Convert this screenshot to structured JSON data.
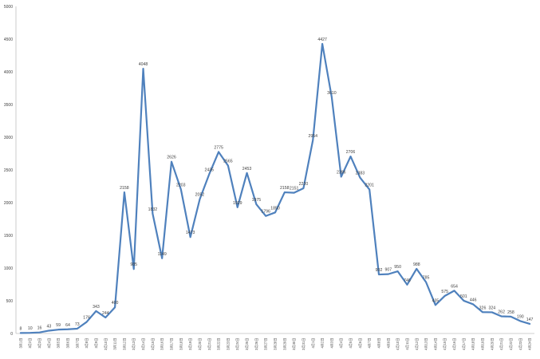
{
  "chart_data": {
    "type": "line",
    "title": "",
    "xlabel": "",
    "ylabel": "",
    "ylim": [
      0,
      5000
    ],
    "yticks": [
      0,
      500,
      1000,
      1500,
      2000,
      2500,
      3000,
      3500,
      4000,
      4500,
      5000
    ],
    "grid": false,
    "legend": "none",
    "line_color": "#4f81bd",
    "categories": [
      "3月1日",
      "3月2日",
      "3月3日",
      "3月4日",
      "3月5日",
      "3月6日",
      "3月7日",
      "3月8日",
      "3月9日",
      "3月10日",
      "3月11日",
      "3月12日",
      "3月13日",
      "3月14日",
      "3月15日",
      "3月16日",
      "3月17日",
      "3月18日",
      "3月19日",
      "3月20日",
      "3月21日",
      "3月22日",
      "3月23日",
      "3月24日",
      "3月25日",
      "3月26日",
      "3月27日",
      "3月28日",
      "3月29日",
      "3月30日",
      "3月31日",
      "4月1日",
      "4月2日",
      "4月3日",
      "4月4日",
      "4月5日",
      "4月6日",
      "4月7日",
      "4月8日",
      "4月9日",
      "4月10日",
      "4月11日",
      "4月12日",
      "4月13日",
      "4月14日",
      "4月15日",
      "4月16日",
      "4月17日",
      "4月18日",
      "4月19日",
      "4月20日",
      "4月21日",
      "4月22日",
      "4月23日",
      "4月24日"
    ],
    "series": [
      {
        "values": [
          8,
          10,
          16,
          43,
          59,
          64,
          73,
          176,
          343,
          244,
          400,
          2158,
          985,
          4048,
          1832,
          1149,
          2626,
          2203,
          1473,
          2052,
          2435,
          2775,
          2565,
          1929,
          2453,
          1975,
          1796,
          1850,
          2158,
          2151,
          2220,
          2954,
          4427,
          3610,
          2396,
          2706,
          2383,
          2201,
          902,
          907,
          950,
          746,
          988,
          785,
          435,
          575,
          654,
          501,
          446,
          326,
          324,
          262,
          258,
          190,
          147
        ]
      }
    ]
  }
}
